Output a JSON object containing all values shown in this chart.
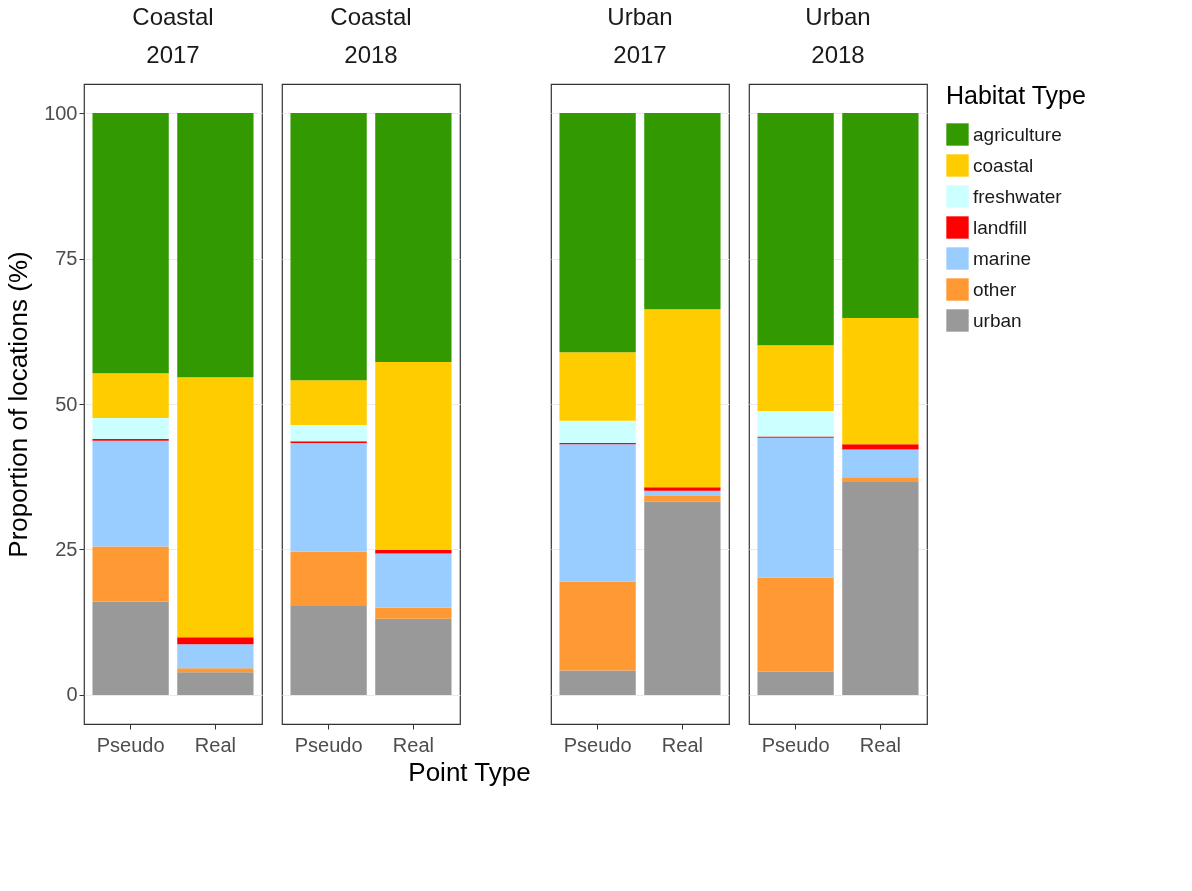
{
  "chart_data": [
    {
      "type": "bar",
      "stacked": true,
      "title": "Coastal",
      "subtitle": "2017",
      "ylabel": "Proportion of locations (%)",
      "legend_title": "Habitat Type",
      "legend": "right",
      "grid": "y",
      "categories": [
        "Pseudo",
        "Real"
      ],
      "ylim": [
        -5,
        105
      ],
      "yticks": [
        0,
        25,
        50,
        75,
        100
      ],
      "series": [
        {
          "name": "urban",
          "color": "#999999",
          "values": [
            16.0,
            3.9
          ]
        },
        {
          "name": "other",
          "color": "#ff9933",
          "values": [
            9.5,
            0.7
          ]
        },
        {
          "name": "marine",
          "color": "#99ccff",
          "values": [
            18.2,
            4.1
          ]
        },
        {
          "name": "landfill",
          "color": "#ff0000",
          "values": [
            0.3,
            1.2
          ]
        },
        {
          "name": "freshwater",
          "color": "#ccffff",
          "values": [
            3.6,
            0
          ]
        },
        {
          "name": "coastal",
          "color": "#ffcc00",
          "values": [
            7.7,
            44.7
          ]
        },
        {
          "name": "agriculture",
          "color": "#339900",
          "values": [
            44.7,
            45.4
          ]
        }
      ]
    },
    {
      "type": "bar",
      "stacked": true,
      "title": "Coastal",
      "subtitle": "2018",
      "xlabel": "Point Type",
      "grid": "y",
      "tick_labels": "x",
      "categories": [
        "Pseudo",
        "Real"
      ],
      "ylim": [
        -5,
        105
      ],
      "yticks": [
        0,
        25,
        50,
        75,
        100
      ],
      "series": [
        {
          "name": "urban",
          "color": "#999999",
          "values": [
            15.3,
            13.1
          ]
        },
        {
          "name": "other",
          "color": "#ff9933",
          "values": [
            9.3,
            1.9
          ]
        },
        {
          "name": "marine",
          "color": "#99ccff",
          "values": [
            18.7,
            9.3
          ]
        },
        {
          "name": "landfill",
          "color": "#ff0000",
          "values": [
            0.3,
            0.6
          ]
        },
        {
          "name": "freshwater",
          "color": "#ccffff",
          "values": [
            2.8,
            0
          ]
        },
        {
          "name": "coastal",
          "color": "#ffcc00",
          "values": [
            7.7,
            32.3
          ]
        },
        {
          "name": "agriculture",
          "color": "#339900",
          "values": [
            45.9,
            42.8
          ]
        }
      ]
    },
    {
      "type": "bar",
      "stacked": true,
      "title": "Urban",
      "subtitle": "2017",
      "grid": "y",
      "tick_labels": "x",
      "categories": [
        "Pseudo",
        "Real"
      ],
      "ylim": [
        -5,
        105
      ],
      "yticks": [
        0,
        25,
        50,
        75,
        100
      ],
      "series": [
        {
          "name": "urban",
          "color": "#999999",
          "values": [
            4.2,
            33.2
          ]
        },
        {
          "name": "other",
          "color": "#ff9933",
          "values": [
            15.3,
            1.0
          ]
        },
        {
          "name": "marine",
          "color": "#99ccff",
          "values": [
            23.6,
            0.9
          ]
        },
        {
          "name": "landfill",
          "color": "#ff0000",
          "values": [
            0.2,
            0.6
          ]
        },
        {
          "name": "freshwater",
          "color": "#ccffff",
          "values": [
            3.8,
            0
          ]
        },
        {
          "name": "coastal",
          "color": "#ffcc00",
          "values": [
            11.8,
            30.6
          ]
        },
        {
          "name": "agriculture",
          "color": "#339900",
          "values": [
            41.1,
            33.7
          ]
        }
      ]
    },
    {
      "type": "bar",
      "stacked": true,
      "title": "Urban",
      "subtitle": "2018",
      "grid": "y",
      "tick_labels": "x",
      "categories": [
        "Pseudo",
        "Real"
      ],
      "ylim": [
        -5,
        105
      ],
      "yticks": [
        0,
        25,
        50,
        75,
        100
      ],
      "series": [
        {
          "name": "urban",
          "color": "#999999",
          "values": [
            4.0,
            36.6
          ]
        },
        {
          "name": "other",
          "color": "#ff9933",
          "values": [
            16.2,
            0.8
          ]
        },
        {
          "name": "marine",
          "color": "#99ccff",
          "values": [
            24.0,
            4.8
          ]
        },
        {
          "name": "landfill",
          "color": "#ff0000",
          "values": [
            0.2,
            0.9
          ]
        },
        {
          "name": "freshwater",
          "color": "#ccffff",
          "values": [
            4.4,
            0
          ]
        },
        {
          "name": "coastal",
          "color": "#ffcc00",
          "values": [
            11.3,
            21.7
          ]
        },
        {
          "name": "agriculture",
          "color": "#339900",
          "values": [
            39.9,
            35.2
          ]
        }
      ]
    }
  ]
}
